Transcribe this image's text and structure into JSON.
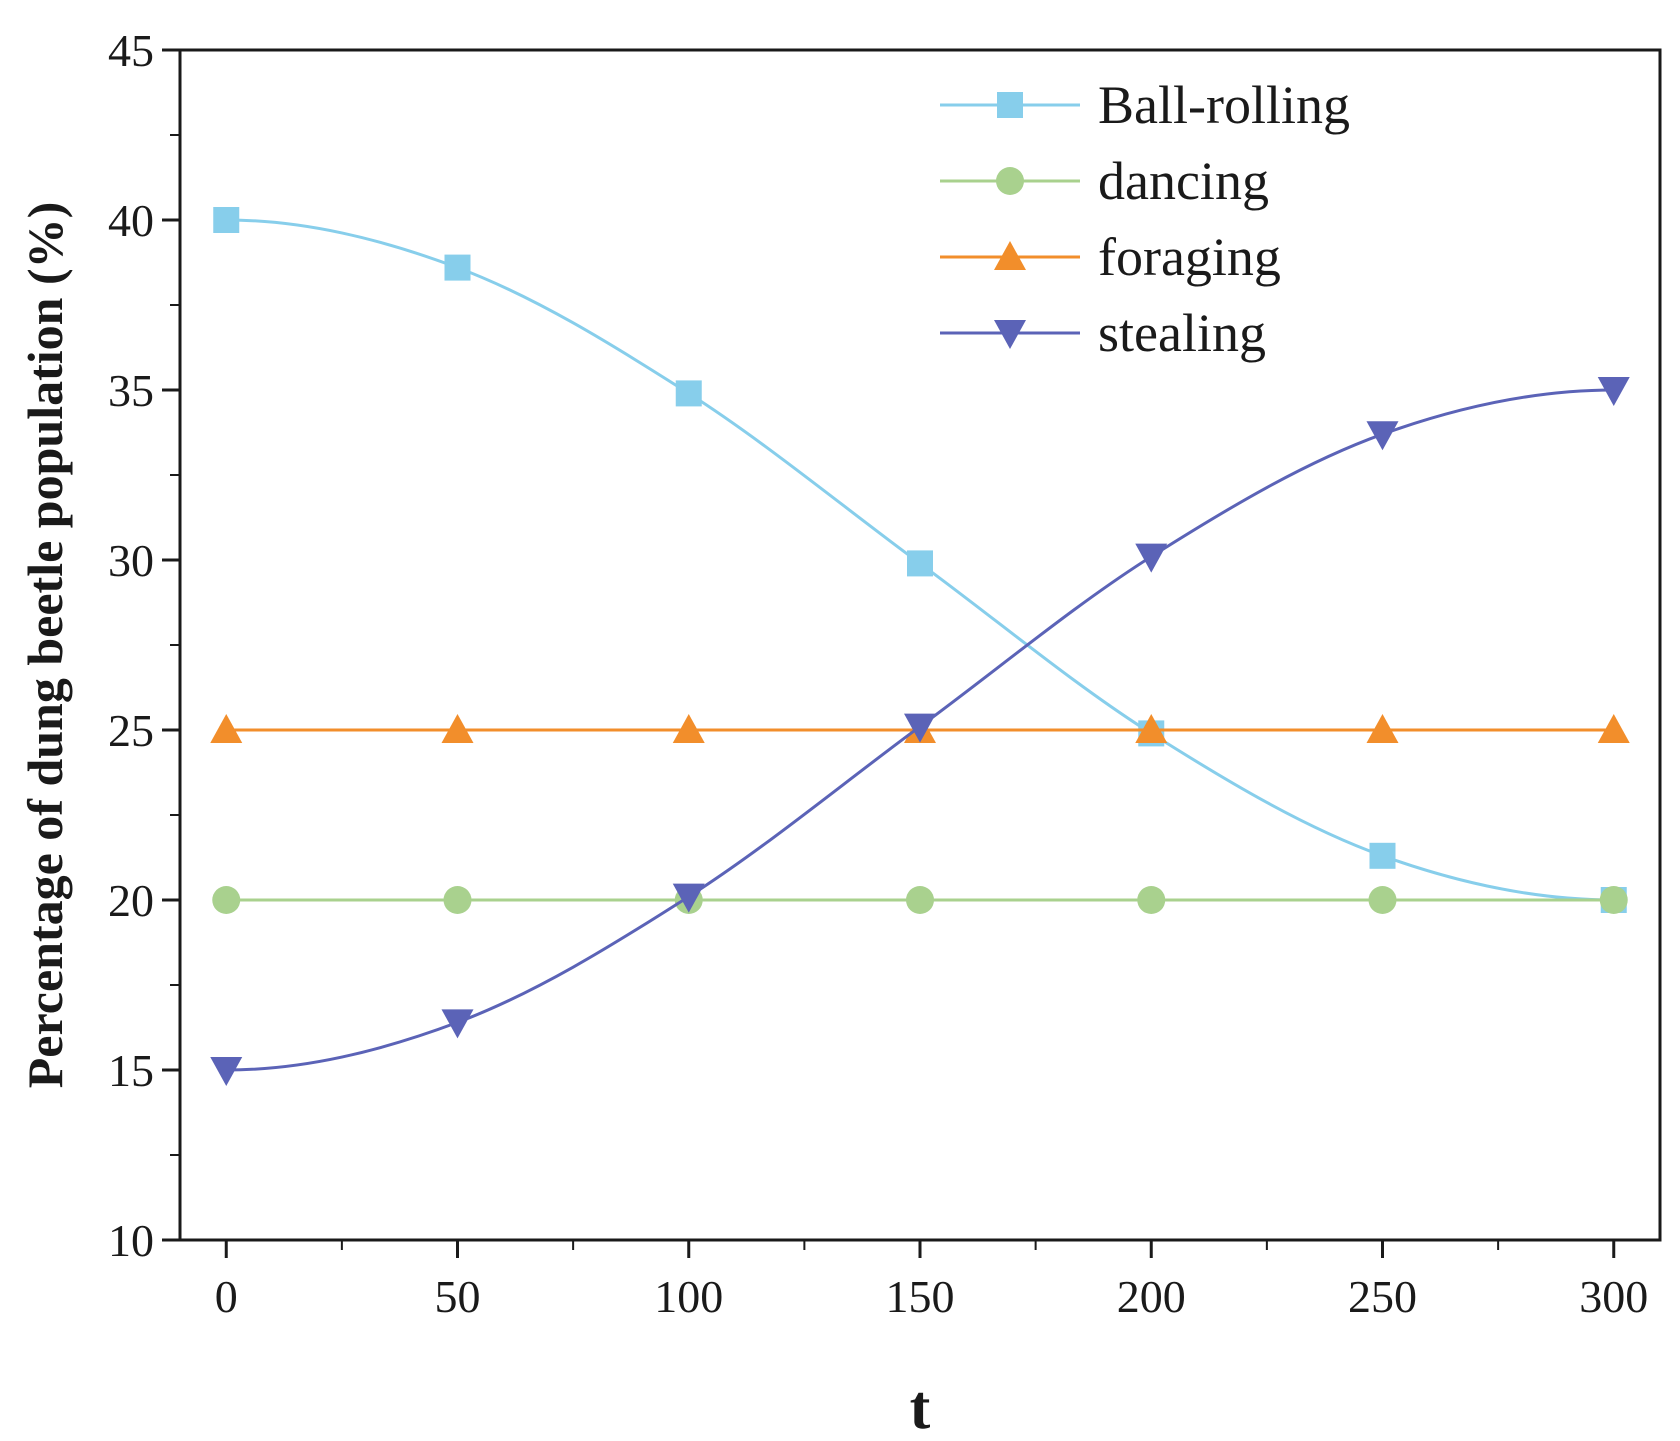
{
  "chart_data": {
    "type": "line",
    "title": "",
    "xlabel": "t",
    "ylabel": "Percentage of dung beetle population (%)",
    "xlim": [
      -10,
      310
    ],
    "ylim": [
      10,
      45
    ],
    "x_ticks": [
      0,
      50,
      100,
      150,
      200,
      250,
      300
    ],
    "y_ticks": [
      10,
      15,
      20,
      25,
      30,
      35,
      40,
      45
    ],
    "x_tick_labels": [
      "0",
      "50",
      "100",
      "150",
      "200",
      "250",
      "300"
    ],
    "y_tick_labels": [
      "10",
      "15",
      "20",
      "25",
      "30",
      "35",
      "40",
      "45"
    ],
    "x": [
      0,
      50,
      100,
      150,
      200,
      250,
      300
    ],
    "grid": false,
    "legend_position": "top-right",
    "series": [
      {
        "name": "Ball-rolling",
        "color": "#87CEEB",
        "marker": "square",
        "smooth": true,
        "values": [
          40,
          38.6,
          34.9,
          29.9,
          24.9,
          21.3,
          20
        ]
      },
      {
        "name": "dancing",
        "color": "#A9D18E",
        "marker": "circle",
        "smooth": false,
        "values": [
          20,
          20,
          20,
          20,
          20,
          20,
          20
        ]
      },
      {
        "name": "foraging",
        "color": "#F28E2B",
        "marker": "triangle-up",
        "smooth": false,
        "values": [
          25,
          25,
          25,
          25,
          25,
          25,
          25
        ]
      },
      {
        "name": "stealing",
        "color": "#5B63B7",
        "marker": "triangle-down",
        "smooth": true,
        "values": [
          15,
          16.4,
          20.1,
          25.1,
          30.1,
          33.7,
          35
        ]
      }
    ]
  }
}
